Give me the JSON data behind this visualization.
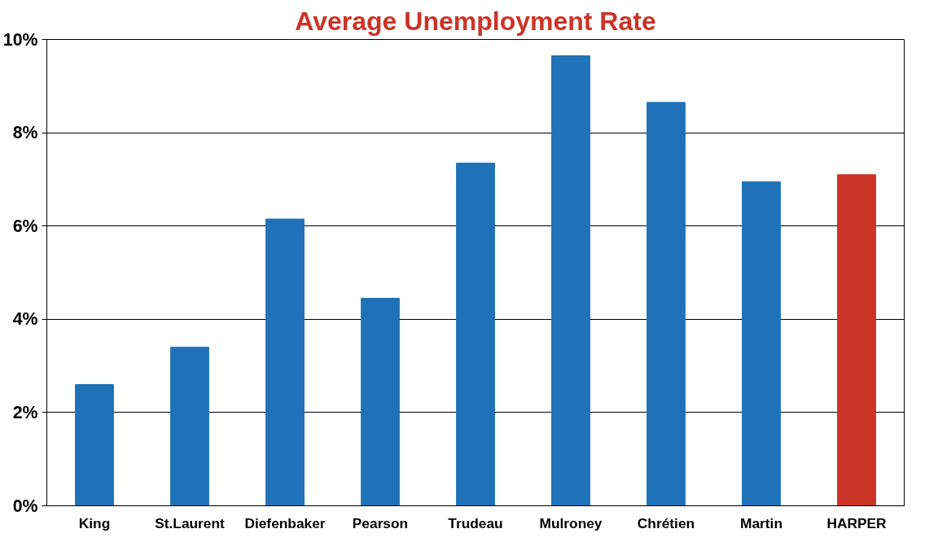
{
  "chart_data": {
    "type": "bar",
    "title": "Average Unemployment Rate",
    "categories": [
      "King",
      "St.Laurent",
      "Diefenbaker",
      "Pearson",
      "Trudeau",
      "Mulroney",
      "Chrétien",
      "Martin",
      "HARPER"
    ],
    "values": [
      2.6,
      3.4,
      6.15,
      4.45,
      7.35,
      9.65,
      8.65,
      6.95,
      7.1
    ],
    "colors": [
      "#1f72b8",
      "#1f72b8",
      "#1f72b8",
      "#1f72b8",
      "#1f72b8",
      "#1f72b8",
      "#1f72b8",
      "#1f72b8",
      "#cc3327"
    ],
    "ylim": [
      0,
      10
    ],
    "yticks": [
      {
        "value": 0,
        "label": "0%"
      },
      {
        "value": 2,
        "label": "2%"
      },
      {
        "value": 4,
        "label": "4%"
      },
      {
        "value": 6,
        "label": "6%"
      },
      {
        "value": 8,
        "label": "8%"
      },
      {
        "value": 10,
        "label": "10%"
      }
    ],
    "grid": "y"
  }
}
